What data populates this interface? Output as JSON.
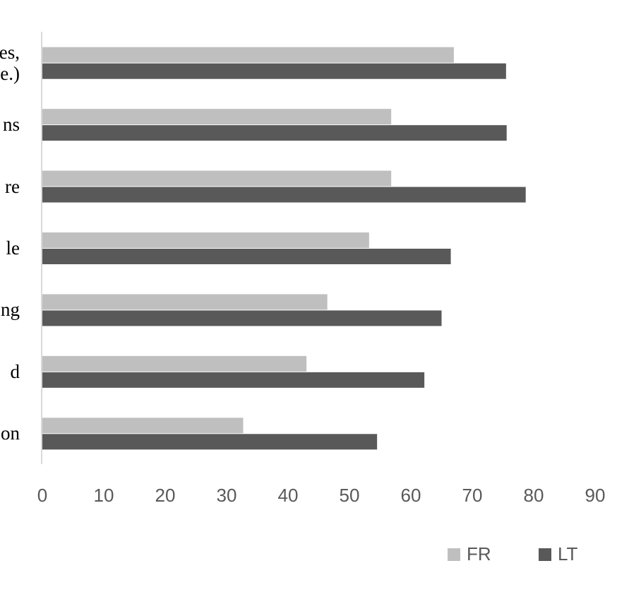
{
  "chart_data": {
    "type": "hbar",
    "categories": [
      "es,\ne.)",
      "ns",
      "re",
      "le",
      "ng",
      "d",
      "on"
    ],
    "series": [
      {
        "name": "FR",
        "color": "#bfbfbf",
        "values": [
          67,
          56.8,
          56.8,
          53.2,
          46.4,
          43,
          32.7
        ]
      },
      {
        "name": "LT",
        "color": "#595959",
        "values": [
          75.5,
          75.6,
          78.7,
          66.5,
          65,
          62.2,
          54.5
        ]
      }
    ],
    "xlim": [
      0,
      90
    ],
    "xticks": [
      0,
      10,
      20,
      30,
      40,
      50,
      60,
      70,
      80,
      90
    ],
    "legend": "bottom-right"
  }
}
